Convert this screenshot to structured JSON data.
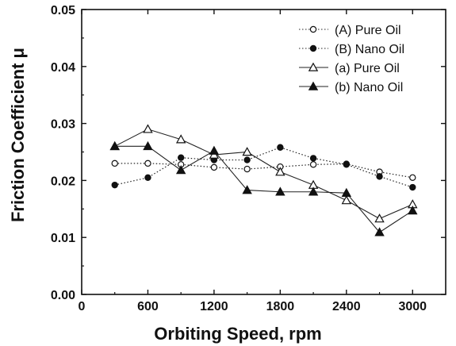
{
  "chart_data": {
    "type": "line",
    "title": "",
    "xlabel": "Orbiting Speed, rpm",
    "ylabel": "Friction Coefficient μ",
    "xlim": [
      0,
      3300
    ],
    "ylim": [
      0.0,
      0.05
    ],
    "x_ticks": [
      0,
      600,
      1200,
      1800,
      2400,
      3000
    ],
    "x_tick_labels": [
      "0",
      "600",
      "1200",
      "1800",
      "2400",
      "3000"
    ],
    "y_ticks": [
      0.0,
      0.01,
      0.02,
      0.03,
      0.04,
      0.05
    ],
    "y_tick_labels": [
      "0.00",
      "0.01",
      "0.02",
      "0.03",
      "0.04",
      "0.05"
    ],
    "grid": false,
    "legend_position": "top-right",
    "x": [
      300,
      600,
      900,
      1200,
      1500,
      1800,
      2100,
      2400,
      2700,
      3000
    ],
    "series": [
      {
        "name": "(A) Pure Oil",
        "marker": "circle-open",
        "line": "dotted",
        "values": [
          0.023,
          0.023,
          0.0228,
          0.0223,
          0.022,
          0.0224,
          0.0228,
          0.0229,
          0.0215,
          0.0205
        ]
      },
      {
        "name": "(B) Nano Oil",
        "marker": "circle-filled",
        "line": "dotted",
        "values": [
          0.0192,
          0.0205,
          0.024,
          0.0236,
          0.0236,
          0.0258,
          0.0239,
          0.0228,
          0.0207,
          0.0188
        ]
      },
      {
        "name": "(a) Pure Oil",
        "marker": "triangle-open",
        "line": "solid",
        "values": [
          0.026,
          0.029,
          0.0272,
          0.0245,
          0.025,
          0.0215,
          0.0192,
          0.0165,
          0.0133,
          0.0158
        ]
      },
      {
        "name": "(b) Nano Oil",
        "marker": "triangle-filled",
        "line": "solid",
        "values": [
          0.026,
          0.026,
          0.0218,
          0.0252,
          0.0183,
          0.018,
          0.018,
          0.0178,
          0.0109,
          0.0147
        ]
      }
    ]
  }
}
